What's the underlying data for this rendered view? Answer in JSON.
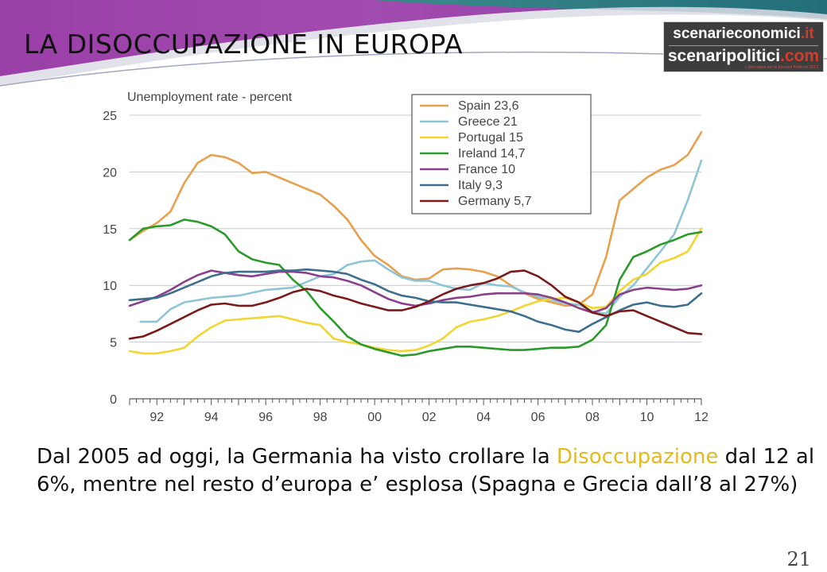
{
  "slide": {
    "title": "LA DISOCCUPAZIONE IN EUROPA",
    "page_number": "21",
    "caption": {
      "part1": "Dal 2005 ad oggi, la Germania ha visto crollare la ",
      "highlight": "Disoccupazione",
      "part2": " dal 12 al 6%, mentre nel resto d’europa e’ esplosa (Spagna e Grecia dall’8 al 27%)"
    },
    "colors": {
      "highlight": "#e6b820",
      "banner_purple": "#8a3a9e",
      "banner_teal": "#2f7f86"
    }
  },
  "logo": {
    "line1": "scenarieconomici",
    "line1_suffix": ".it",
    "line2": "scenaripolitici",
    "line2_suffix": ".com",
    "tagline": "L'alternativa per le Elezioni Politiche 2013"
  },
  "chart_data": {
    "type": "line",
    "title": "Unemployment rate - percent",
    "ylim": [
      0,
      25
    ],
    "yticks": [
      "0",
      "5",
      "10",
      "15",
      "20",
      "25"
    ],
    "xlim": [
      1991,
      2012
    ],
    "xticks": [
      "92",
      "94",
      "96",
      "98",
      "00",
      "02",
      "04",
      "06",
      "08",
      "10",
      "12"
    ],
    "grid": "horizontal",
    "legend_position": "top-center",
    "series": [
      {
        "name": "Spain 23,6",
        "color": "#e8a04e",
        "points": [
          [
            1991,
            14
          ],
          [
            1991.5,
            14.8
          ],
          [
            1992,
            15.5
          ],
          [
            1992.5,
            16.5
          ],
          [
            1993,
            19
          ],
          [
            1993.5,
            20.8
          ],
          [
            1994,
            21.5
          ],
          [
            1994.5,
            21.3
          ],
          [
            1995,
            20.8
          ],
          [
            1995.5,
            19.9
          ],
          [
            1996,
            20
          ],
          [
            1996.5,
            19.5
          ],
          [
            1997,
            19
          ],
          [
            1997.5,
            18.5
          ],
          [
            1998,
            18
          ],
          [
            1998.5,
            17
          ],
          [
            1999,
            15.8
          ],
          [
            1999.5,
            14
          ],
          [
            2000,
            12.6
          ],
          [
            2000.5,
            11.8
          ],
          [
            2001,
            10.8
          ],
          [
            2001.5,
            10.5
          ],
          [
            2002,
            10.6
          ],
          [
            2002.5,
            11.4
          ],
          [
            2003,
            11.5
          ],
          [
            2003.5,
            11.4
          ],
          [
            2004,
            11.2
          ],
          [
            2004.5,
            10.8
          ],
          [
            2005,
            10
          ],
          [
            2005.5,
            9.3
          ],
          [
            2006,
            8.8
          ],
          [
            2006.5,
            8.5
          ],
          [
            2007,
            8.2
          ],
          [
            2007.5,
            8.3
          ],
          [
            2008,
            9.2
          ],
          [
            2008.5,
            12.5
          ],
          [
            2009,
            17.5
          ],
          [
            2009.5,
            18.5
          ],
          [
            2010,
            19.5
          ],
          [
            2010.5,
            20.2
          ],
          [
            2011,
            20.6
          ],
          [
            2011.5,
            21.5
          ],
          [
            2012,
            23.5
          ]
        ]
      },
      {
        "name": "Greece 21",
        "color": "#8ec5d6",
        "points": [
          [
            1991.4,
            6.8
          ],
          [
            1992,
            6.8
          ],
          [
            1992.5,
            7.9
          ],
          [
            1993,
            8.5
          ],
          [
            1994,
            8.9
          ],
          [
            1995,
            9.1
          ],
          [
            1996,
            9.6
          ],
          [
            1997,
            9.8
          ],
          [
            1998,
            10.8
          ],
          [
            1998.5,
            11
          ],
          [
            1999,
            11.8
          ],
          [
            1999.5,
            12.1
          ],
          [
            2000,
            12.2
          ],
          [
            2000.5,
            11.4
          ],
          [
            2001,
            10.7
          ],
          [
            2001.5,
            10.4
          ],
          [
            2002,
            10.4
          ],
          [
            2002.5,
            10
          ],
          [
            2003,
            9.7
          ],
          [
            2003.5,
            9.6
          ],
          [
            2004,
            10.2
          ],
          [
            2004.5,
            10
          ],
          [
            2005,
            9.9
          ],
          [
            2005.5,
            9.4
          ],
          [
            2006,
            9
          ],
          [
            2006.5,
            8.7
          ],
          [
            2007,
            8.4
          ],
          [
            2007.5,
            8.3
          ],
          [
            2008,
            7.7
          ],
          [
            2008.5,
            7.5
          ],
          [
            2009,
            9
          ],
          [
            2009.5,
            10
          ],
          [
            2010,
            11.5
          ],
          [
            2010.5,
            13
          ],
          [
            2011,
            14.5
          ],
          [
            2011.5,
            17.5
          ],
          [
            2012,
            21
          ]
        ]
      },
      {
        "name": "Portugal 15",
        "color": "#f2d531",
        "points": [
          [
            1991,
            4.2
          ],
          [
            1991.5,
            4
          ],
          [
            1992,
            4
          ],
          [
            1992.5,
            4.2
          ],
          [
            1993,
            4.5
          ],
          [
            1993.5,
            5.5
          ],
          [
            1994,
            6.3
          ],
          [
            1994.5,
            6.9
          ],
          [
            1995,
            7
          ],
          [
            1995.5,
            7.1
          ],
          [
            1996,
            7.2
          ],
          [
            1996.5,
            7.3
          ],
          [
            1997,
            7
          ],
          [
            1997.5,
            6.7
          ],
          [
            1998,
            6.5
          ],
          [
            1998.5,
            5.3
          ],
          [
            1999,
            5
          ],
          [
            1999.5,
            4.8
          ],
          [
            2000,
            4.5
          ],
          [
            2000.5,
            4.3
          ],
          [
            2001,
            4.2
          ],
          [
            2001.5,
            4.3
          ],
          [
            2002,
            4.7
          ],
          [
            2002.5,
            5.3
          ],
          [
            2003,
            6.3
          ],
          [
            2003.5,
            6.8
          ],
          [
            2004,
            7
          ],
          [
            2004.5,
            7.3
          ],
          [
            2005,
            7.7
          ],
          [
            2005.5,
            8.2
          ],
          [
            2006,
            8.6
          ],
          [
            2006.5,
            8.8
          ],
          [
            2007,
            8.9
          ],
          [
            2007.5,
            8.5
          ],
          [
            2008,
            8
          ],
          [
            2008.5,
            8.1
          ],
          [
            2009,
            9.5
          ],
          [
            2009.5,
            10.5
          ],
          [
            2010,
            11
          ],
          [
            2010.5,
            12
          ],
          [
            2011,
            12.4
          ],
          [
            2011.5,
            13
          ],
          [
            2012,
            15
          ]
        ]
      },
      {
        "name": "Ireland 14,7",
        "color": "#2a9a2a",
        "points": [
          [
            1991,
            14
          ],
          [
            1991.5,
            15
          ],
          [
            1992,
            15.2
          ],
          [
            1992.5,
            15.3
          ],
          [
            1993,
            15.8
          ],
          [
            1993.5,
            15.6
          ],
          [
            1994,
            15.2
          ],
          [
            1994.5,
            14.5
          ],
          [
            1995,
            13
          ],
          [
            1995.5,
            12.3
          ],
          [
            1996,
            12
          ],
          [
            1996.5,
            11.8
          ],
          [
            1997,
            10.5
          ],
          [
            1997.5,
            9.5
          ],
          [
            1998,
            8
          ],
          [
            1998.5,
            6.8
          ],
          [
            1999,
            5.5
          ],
          [
            1999.5,
            4.8
          ],
          [
            2000,
            4.4
          ],
          [
            2000.5,
            4.1
          ],
          [
            2001,
            3.8
          ],
          [
            2001.5,
            3.9
          ],
          [
            2002,
            4.2
          ],
          [
            2002.5,
            4.4
          ],
          [
            2003,
            4.6
          ],
          [
            2003.5,
            4.6
          ],
          [
            2004,
            4.5
          ],
          [
            2004.5,
            4.4
          ],
          [
            2005,
            4.3
          ],
          [
            2005.5,
            4.3
          ],
          [
            2006,
            4.4
          ],
          [
            2006.5,
            4.5
          ],
          [
            2007,
            4.5
          ],
          [
            2007.5,
            4.6
          ],
          [
            2008,
            5.2
          ],
          [
            2008.5,
            6.5
          ],
          [
            2009,
            10.5
          ],
          [
            2009.5,
            12.5
          ],
          [
            2010,
            13
          ],
          [
            2010.5,
            13.6
          ],
          [
            2011,
            14
          ],
          [
            2011.5,
            14.5
          ],
          [
            2012,
            14.7
          ]
        ]
      },
      {
        "name": "France 10",
        "color": "#8a3f8a",
        "points": [
          [
            1991,
            8.2
          ],
          [
            1991.5,
            8.6
          ],
          [
            1992,
            9
          ],
          [
            1992.5,
            9.6
          ],
          [
            1993,
            10.3
          ],
          [
            1993.5,
            10.9
          ],
          [
            1994,
            11.3
          ],
          [
            1994.5,
            11.1
          ],
          [
            1995,
            10.9
          ],
          [
            1995.5,
            10.8
          ],
          [
            1996,
            11
          ],
          [
            1996.5,
            11.2
          ],
          [
            1997,
            11.2
          ],
          [
            1997.5,
            11.1
          ],
          [
            1998,
            10.8
          ],
          [
            1998.5,
            10.7
          ],
          [
            1999,
            10.4
          ],
          [
            1999.5,
            10
          ],
          [
            2000,
            9.4
          ],
          [
            2000.5,
            8.8
          ],
          [
            2001,
            8.4
          ],
          [
            2001.5,
            8.2
          ],
          [
            2002,
            8.4
          ],
          [
            2002.5,
            8.7
          ],
          [
            2003,
            8.9
          ],
          [
            2003.5,
            9
          ],
          [
            2004,
            9.2
          ],
          [
            2004.5,
            9.3
          ],
          [
            2005,
            9.3
          ],
          [
            2005.5,
            9.3
          ],
          [
            2006,
            9.2
          ],
          [
            2006.5,
            8.9
          ],
          [
            2007,
            8.5
          ],
          [
            2007.5,
            8
          ],
          [
            2008,
            7.6
          ],
          [
            2008.5,
            8
          ],
          [
            2009,
            9.2
          ],
          [
            2009.5,
            9.6
          ],
          [
            2010,
            9.8
          ],
          [
            2010.5,
            9.7
          ],
          [
            2011,
            9.6
          ],
          [
            2011.5,
            9.7
          ],
          [
            2012,
            10
          ]
        ]
      },
      {
        "name": "Italy 9,3",
        "color": "#3d6e8e",
        "points": [
          [
            1991,
            8.7
          ],
          [
            1991.5,
            8.8
          ],
          [
            1992,
            8.9
          ],
          [
            1992.5,
            9.3
          ],
          [
            1993,
            9.8
          ],
          [
            1993.5,
            10.3
          ],
          [
            1994,
            10.8
          ],
          [
            1994.5,
            11.1
          ],
          [
            1995,
            11.2
          ],
          [
            1995.5,
            11.2
          ],
          [
            1996,
            11.2
          ],
          [
            1996.5,
            11.3
          ],
          [
            1997,
            11.3
          ],
          [
            1997.5,
            11.4
          ],
          [
            1998,
            11.3
          ],
          [
            1998.5,
            11.2
          ],
          [
            1999,
            11
          ],
          [
            1999.5,
            10.5
          ],
          [
            2000,
            10.1
          ],
          [
            2000.5,
            9.5
          ],
          [
            2001,
            9.1
          ],
          [
            2001.5,
            8.9
          ],
          [
            2002,
            8.6
          ],
          [
            2002.5,
            8.5
          ],
          [
            2003,
            8.5
          ],
          [
            2003.5,
            8.3
          ],
          [
            2004,
            8.1
          ],
          [
            2004.5,
            7.9
          ],
          [
            2005,
            7.7
          ],
          [
            2005.5,
            7.3
          ],
          [
            2006,
            6.8
          ],
          [
            2006.5,
            6.5
          ],
          [
            2007,
            6.1
          ],
          [
            2007.5,
            5.9
          ],
          [
            2008,
            6.6
          ],
          [
            2008.5,
            7.2
          ],
          [
            2009,
            7.8
          ],
          [
            2009.5,
            8.3
          ],
          [
            2010,
            8.5
          ],
          [
            2010.5,
            8.2
          ],
          [
            2011,
            8.1
          ],
          [
            2011.5,
            8.3
          ],
          [
            2012,
            9.3
          ]
        ]
      },
      {
        "name": "Germany 5,7",
        "color": "#7a1a1a",
        "points": [
          [
            1991,
            5.3
          ],
          [
            1991.5,
            5.5
          ],
          [
            1992,
            6
          ],
          [
            1992.5,
            6.6
          ],
          [
            1993,
            7.2
          ],
          [
            1993.5,
            7.8
          ],
          [
            1994,
            8.3
          ],
          [
            1994.5,
            8.4
          ],
          [
            1995,
            8.2
          ],
          [
            1995.5,
            8.2
          ],
          [
            1996,
            8.5
          ],
          [
            1996.5,
            8.9
          ],
          [
            1997,
            9.4
          ],
          [
            1997.5,
            9.7
          ],
          [
            1998,
            9.5
          ],
          [
            1998.5,
            9.1
          ],
          [
            1999,
            8.8
          ],
          [
            1999.5,
            8.4
          ],
          [
            2000,
            8.1
          ],
          [
            2000.5,
            7.8
          ],
          [
            2001,
            7.8
          ],
          [
            2001.5,
            8.1
          ],
          [
            2002,
            8.6
          ],
          [
            2002.5,
            9.2
          ],
          [
            2003,
            9.7
          ],
          [
            2003.5,
            10
          ],
          [
            2004,
            10.2
          ],
          [
            2004.5,
            10.6
          ],
          [
            2005,
            11.2
          ],
          [
            2005.5,
            11.3
          ],
          [
            2006,
            10.8
          ],
          [
            2006.5,
            10
          ],
          [
            2007,
            9
          ],
          [
            2007.5,
            8.5
          ],
          [
            2008,
            7.6
          ],
          [
            2008.5,
            7.3
          ],
          [
            2009,
            7.7
          ],
          [
            2009.5,
            7.8
          ],
          [
            2010,
            7.3
          ],
          [
            2010.5,
            6.8
          ],
          [
            2011,
            6.3
          ],
          [
            2011.5,
            5.8
          ],
          [
            2012,
            5.7
          ]
        ]
      }
    ]
  }
}
